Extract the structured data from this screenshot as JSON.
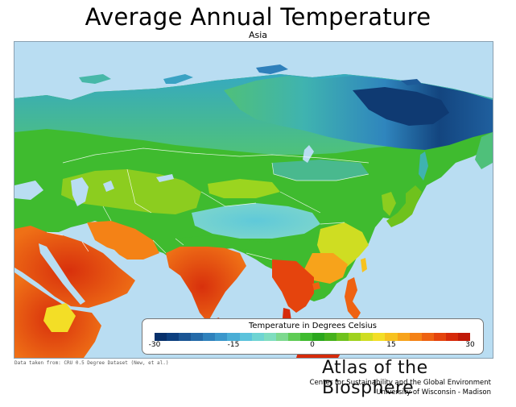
{
  "title": "Average Annual Temperature",
  "subtitle": "Asia",
  "legend": {
    "title": "Temperature in Degrees Celsius",
    "ticks": [
      "-30",
      "-15",
      "0",
      "15",
      "30"
    ],
    "colors": [
      "#08306b",
      "#0d3f7f",
      "#1a5594",
      "#246aa8",
      "#2f81bc",
      "#3b97cb",
      "#4aaed6",
      "#5cc3dc",
      "#6fd4d3",
      "#7fddc0",
      "#7dd98f",
      "#5fcc55",
      "#3fbb2f",
      "#2aa61d",
      "#46b11b",
      "#6fc21d",
      "#9fd21f",
      "#cfdd22",
      "#f3de26",
      "#f7c21f",
      "#f7a31b",
      "#f48216",
      "#ee6212",
      "#e5440d",
      "#d62a0a",
      "#c01a08"
    ],
    "range": [
      -30,
      30
    ]
  },
  "source": "Data taken from: CRU 0.5 Degree Dataset (New, et al.)",
  "brand": "Atlas of the Biosphere",
  "center": "Center for Sustainability and the Global Environment",
  "university": "University of Wisconsin - Madison",
  "colors": {
    "ocean": "#b9ddf2",
    "border": "#ffffff"
  }
}
